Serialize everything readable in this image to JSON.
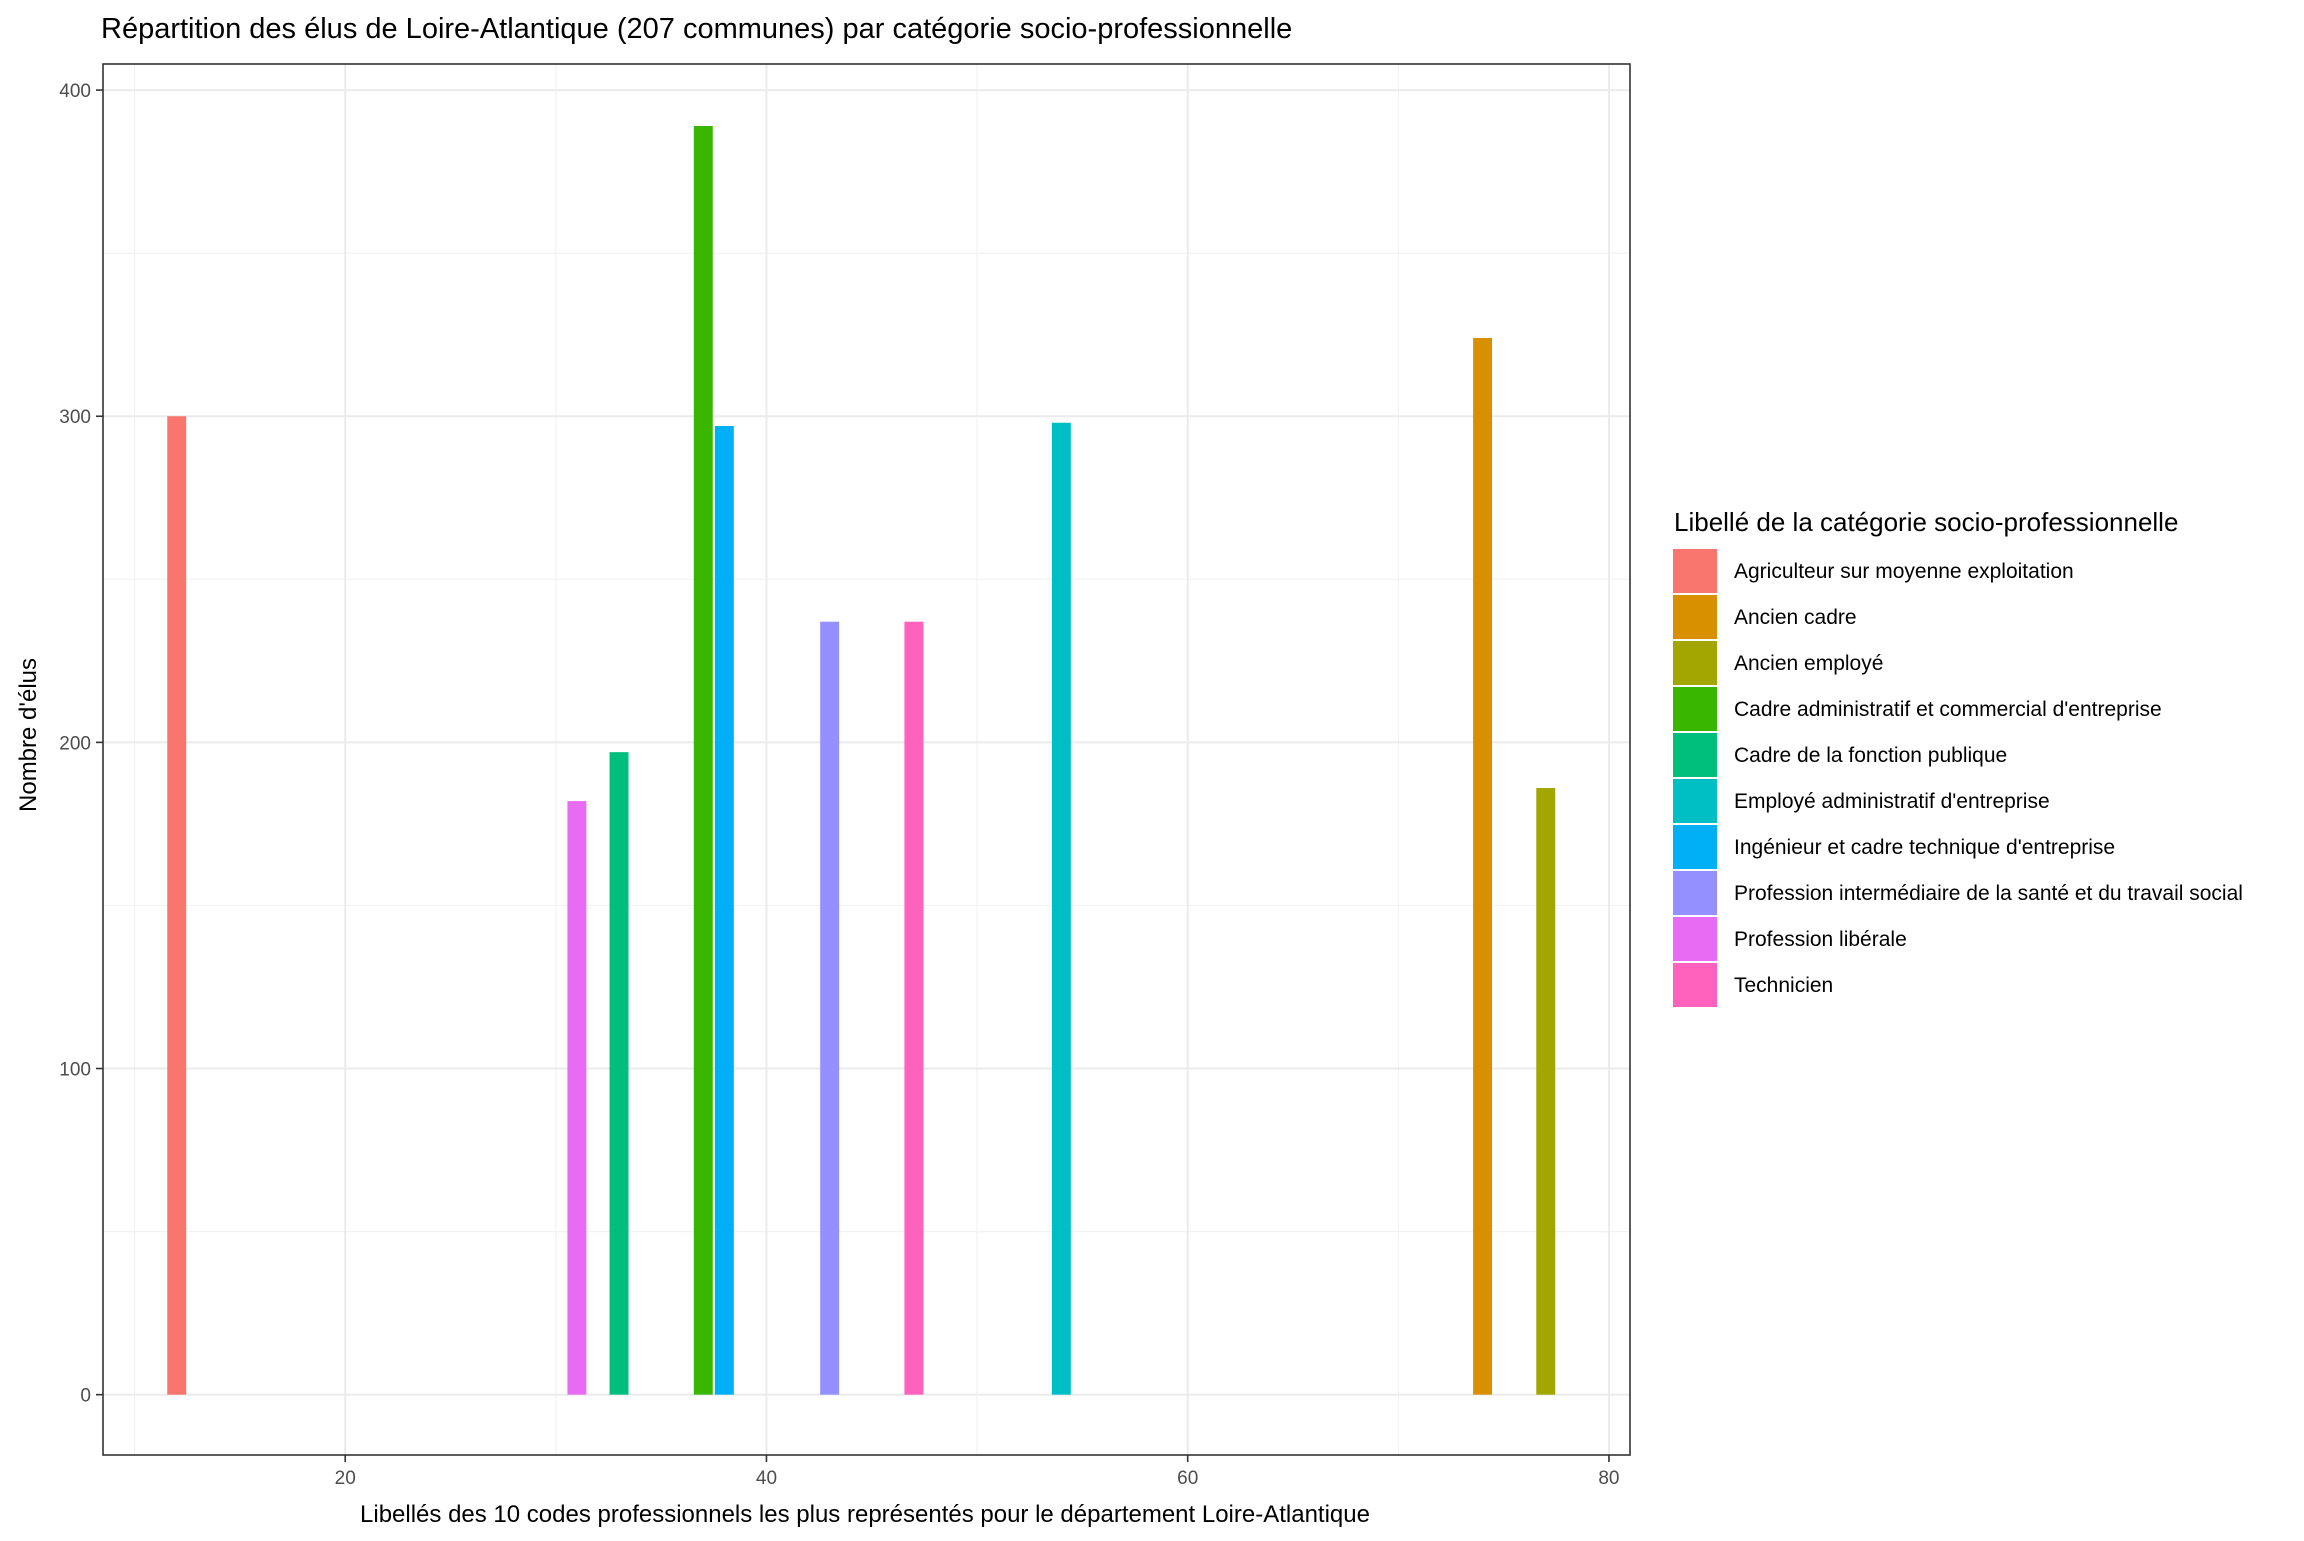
{
  "chart_data": {
    "type": "bar",
    "title": "Répartition des élus de Loire-Atlantique (207 communes) par catégorie socio-professionnelle",
    "xlabel": "Libellés des 10 codes professionnels les plus représentés pour le département Loire-Atlantique",
    "ylabel": "Nombre d'élus",
    "xlim": [
      8.5,
      81
    ],
    "ylim": [
      -18.5,
      408
    ],
    "x_ticks": [
      20,
      40,
      60,
      80
    ],
    "x_minor_ticks": [
      10,
      30,
      50,
      70
    ],
    "y_ticks": [
      0,
      100,
      200,
      300,
      400
    ],
    "y_minor_ticks": [
      50,
      150,
      250,
      350
    ],
    "bar_width": 0.9,
    "grid": true,
    "legend_title": "Libellé de la catégorie socio-professionnelle",
    "legend_position": "right",
    "series": [
      {
        "name": "Agriculteur sur moyenne exploitation",
        "x": 12,
        "value": 300,
        "color": "#F8766D"
      },
      {
        "name": "Ancien cadre",
        "x": 74,
        "value": 324,
        "color": "#D89000"
      },
      {
        "name": "Ancien employé",
        "x": 77,
        "value": 186,
        "color": "#A3A500"
      },
      {
        "name": "Cadre administratif et commercial d'entreprise",
        "x": 37,
        "value": 389,
        "color": "#39B600"
      },
      {
        "name": "Cadre de la fonction publique",
        "x": 33,
        "value": 197,
        "color": "#00BF7D"
      },
      {
        "name": "Employé administratif d'entreprise",
        "x": 54,
        "value": 298,
        "color": "#00BFC4"
      },
      {
        "name": "Ingénieur et cadre technique d'entreprise",
        "x": 38,
        "value": 297,
        "color": "#00B0F6"
      },
      {
        "name": "Profession intermédiaire de la santé et du travail social",
        "x": 43,
        "value": 237,
        "color": "#9590FF"
      },
      {
        "name": "Profession libérale",
        "x": 31,
        "value": 182,
        "color": "#E76BF3"
      },
      {
        "name": "Technicien",
        "x": 47,
        "value": 237,
        "color": "#FF62BC"
      }
    ]
  }
}
